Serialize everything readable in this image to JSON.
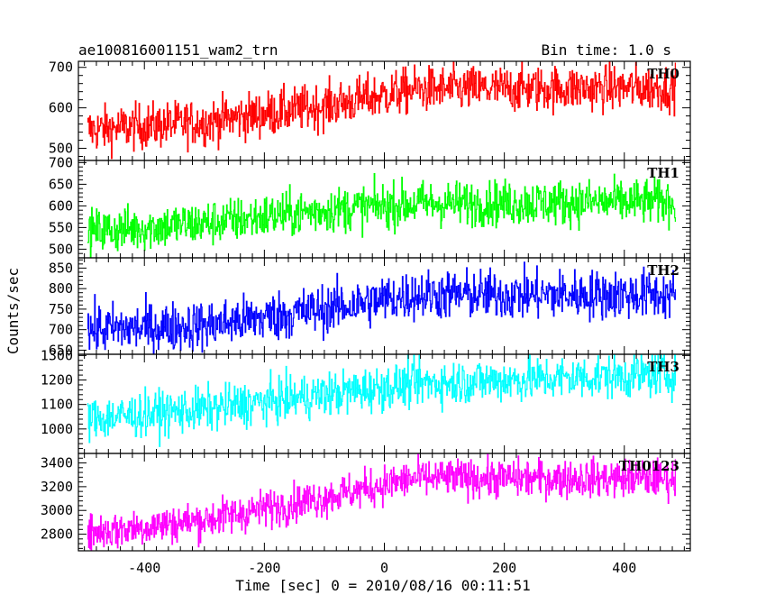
{
  "chart_data": {
    "type": "line",
    "title": "ae100816001151_wam2_trn",
    "bin_time_label": "Bin time: 1.0 s",
    "xlabel": "Time [sec] 0 = 2010/08/16 00:11:51",
    "ylabel": "Counts/sec",
    "xlim": [
      -510,
      510
    ],
    "x_ticks": [
      -400,
      -200,
      0,
      200,
      400
    ],
    "x_data_range": [
      -495,
      485
    ],
    "bin_seconds": 1.0,
    "grid": false,
    "legend": "none",
    "panels": [
      {
        "name": "TH0",
        "color": "#ff0000",
        "ylim": [
          470,
          715
        ],
        "y_ticks": [
          500,
          600,
          700
        ],
        "trend": [
          {
            "x": -495,
            "y": 545
          },
          {
            "x": -300,
            "y": 565
          },
          {
            "x": -100,
            "y": 605
          },
          {
            "x": 50,
            "y": 645
          },
          {
            "x": 485,
            "y": 650
          }
        ],
        "noise_amplitude": 28
      },
      {
        "name": "TH1",
        "color": "#00ff00",
        "ylim": [
          480,
          705
        ],
        "y_ticks": [
          500,
          550,
          600,
          650,
          700
        ],
        "trend": [
          {
            "x": -495,
            "y": 540
          },
          {
            "x": -300,
            "y": 560
          },
          {
            "x": -100,
            "y": 590
          },
          {
            "x": 50,
            "y": 605
          },
          {
            "x": 485,
            "y": 610
          }
        ],
        "noise_amplitude": 26
      },
      {
        "name": "TH2",
        "color": "#0000ff",
        "ylim": [
          640,
          875
        ],
        "y_ticks": [
          650,
          700,
          750,
          800,
          850
        ],
        "trend": [
          {
            "x": -495,
            "y": 700
          },
          {
            "x": -300,
            "y": 710
          },
          {
            "x": -100,
            "y": 750
          },
          {
            "x": 50,
            "y": 785
          },
          {
            "x": 485,
            "y": 785
          }
        ],
        "noise_amplitude": 30
      },
      {
        "name": "TH3",
        "color": "#00ffff",
        "ylim": [
          900,
          1305
        ],
        "y_ticks": [
          1000,
          1100,
          1200,
          1300
        ],
        "trend": [
          {
            "x": -495,
            "y": 1040
          },
          {
            "x": -300,
            "y": 1080
          },
          {
            "x": -100,
            "y": 1140
          },
          {
            "x": 50,
            "y": 1185
          },
          {
            "x": 485,
            "y": 1225
          }
        ],
        "noise_amplitude": 45
      },
      {
        "name": "TH0123",
        "color": "#ff00ff",
        "ylim": [
          2660,
          3480
        ],
        "y_ticks": [
          2800,
          3000,
          3200,
          3400
        ],
        "trend": [
          {
            "x": -495,
            "y": 2810
          },
          {
            "x": -300,
            "y": 2920
          },
          {
            "x": -100,
            "y": 3110
          },
          {
            "x": 50,
            "y": 3270
          },
          {
            "x": 485,
            "y": 3270
          }
        ],
        "noise_amplitude": 80
      }
    ]
  }
}
